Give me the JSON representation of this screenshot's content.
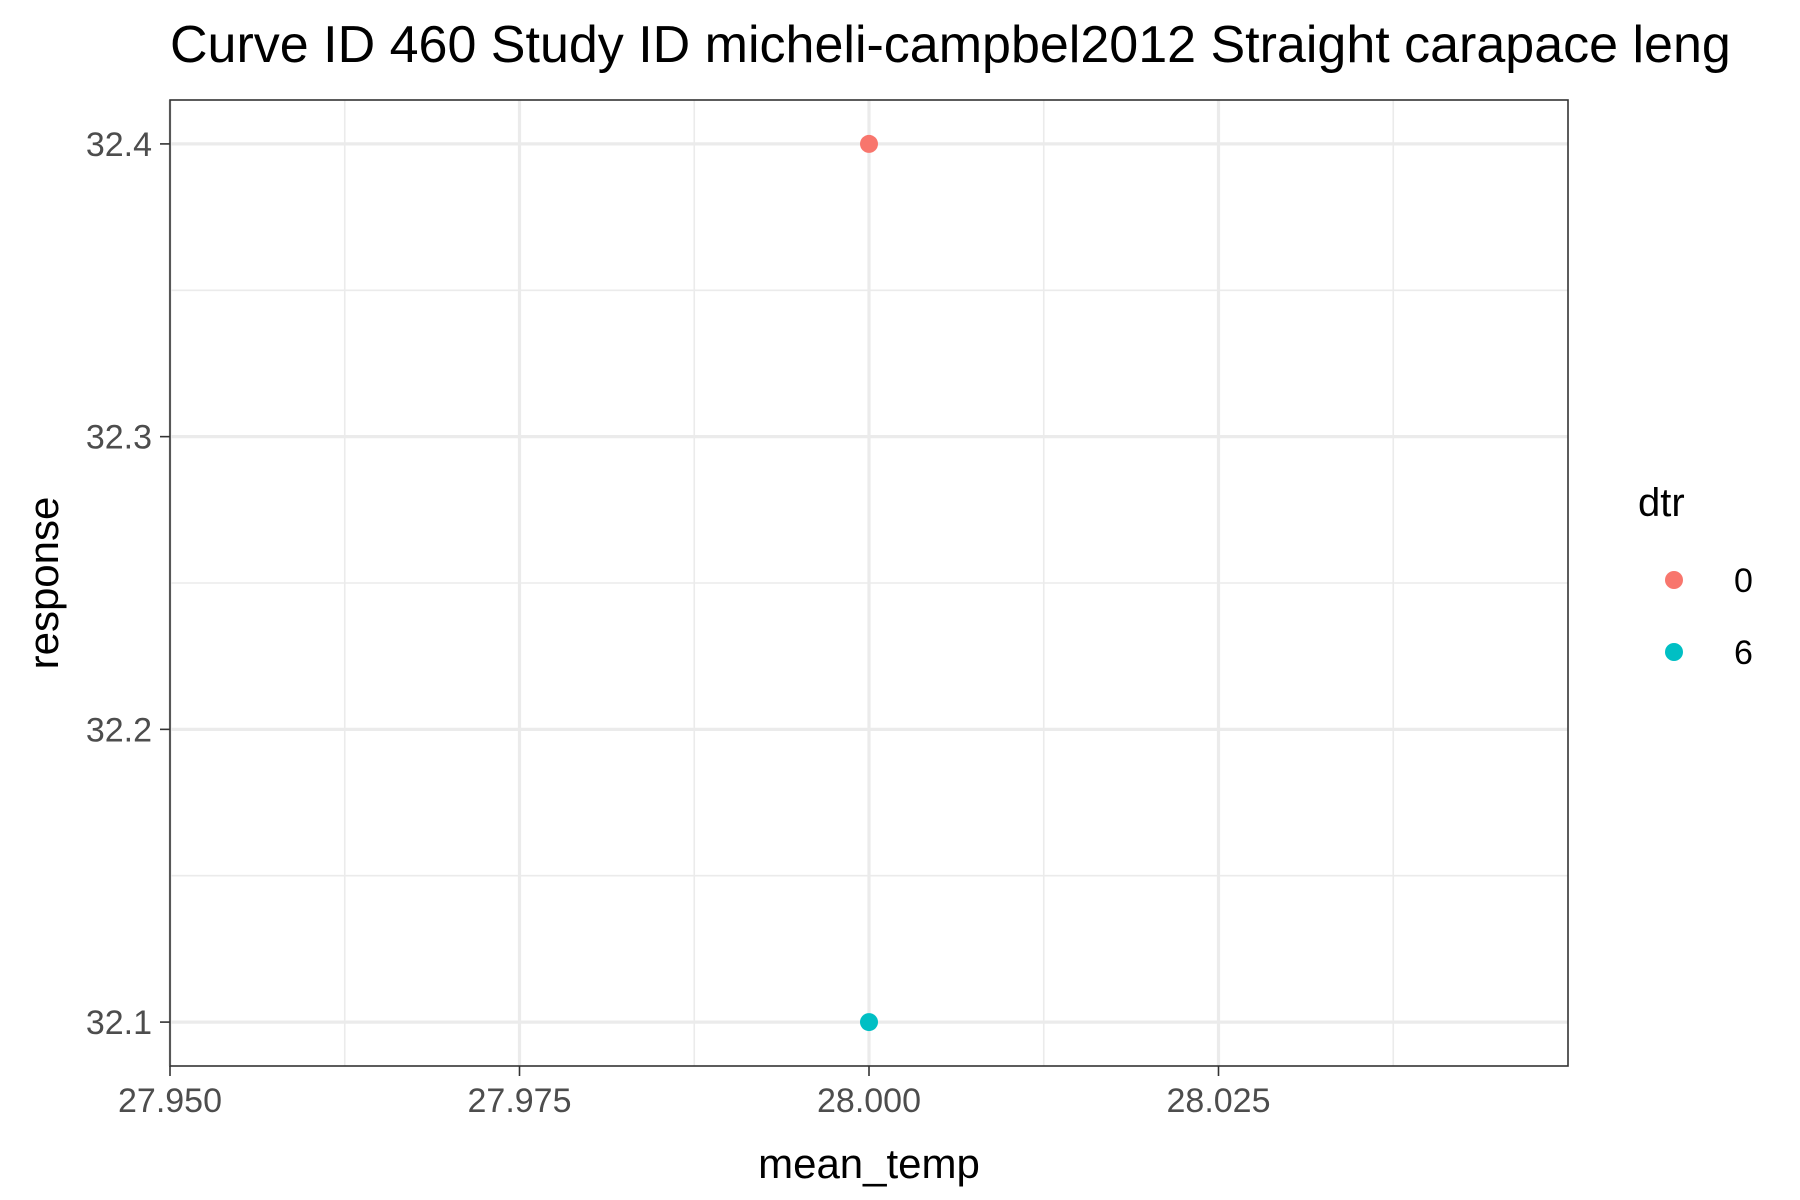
{
  "chart_data": {
    "type": "scatter",
    "title": "Curve ID 460 Study ID micheli-campbel2012 Straight carapace leng",
    "xlabel": "mean_temp",
    "ylabel": "response",
    "xlim": [
      27.95,
      28.05
    ],
    "ylim": [
      32.085,
      32.415
    ],
    "x_ticks": [
      27.95,
      27.975,
      28.0,
      28.025
    ],
    "x_tick_labels": [
      "27.950",
      "27.975",
      "28.000",
      "28.025"
    ],
    "y_ticks": [
      32.1,
      32.2,
      32.3,
      32.4
    ],
    "y_tick_labels": [
      "32.1",
      "32.2",
      "32.3",
      "32.4"
    ],
    "grid": true,
    "legend": {
      "title": "dtr",
      "placement": "right",
      "entries": [
        {
          "label": "0",
          "color": "#F8766D"
        },
        {
          "label": "6",
          "color": "#00BFC4"
        }
      ]
    },
    "series": [
      {
        "name": "0",
        "color": "#F8766D",
        "points": [
          {
            "x": 28.0,
            "y": 32.4
          }
        ]
      },
      {
        "name": "6",
        "color": "#00BFC4",
        "points": [
          {
            "x": 28.0,
            "y": 32.1
          }
        ]
      }
    ]
  }
}
